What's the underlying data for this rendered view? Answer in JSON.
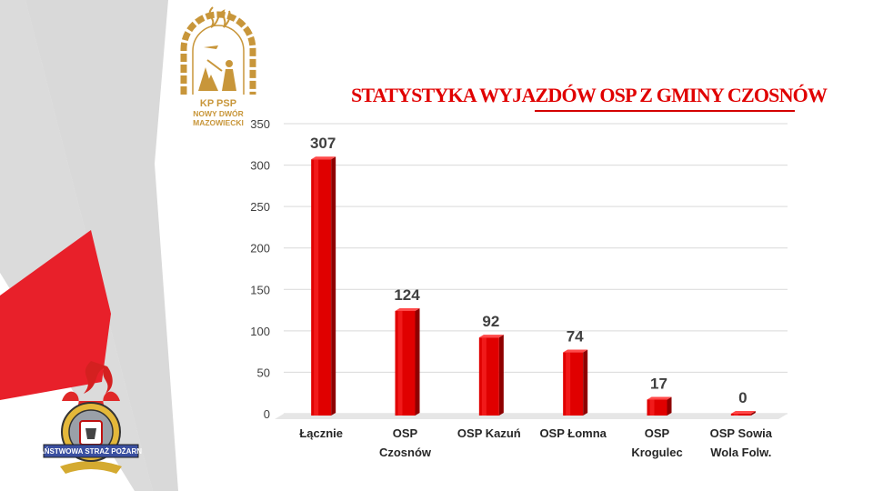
{
  "title": "STATYSTYKA WYJAZDÓW OSP Z GMINY CZOSNÓW",
  "logo_top": {
    "line1": "KP PSP",
    "line2": "NOWY DWÓR",
    "line3": "MAZOWIECKI"
  },
  "logo_bottom": {
    "text": "PAŃSTWOWA STRAŻ POŻARNA"
  },
  "colors": {
    "bar": "#e00000",
    "title": "#e00000",
    "gold": "#c8963a",
    "deco_gray": "#cccccc",
    "deco_red": "#e8202a"
  },
  "chart_data": {
    "type": "bar",
    "title": "STATYSTYKA WYJAZDÓW OSP Z GMINY CZOSNÓW",
    "categories": [
      [
        "Łącznie"
      ],
      [
        "OSP",
        "Czosnów"
      ],
      [
        "OSP Kazuń"
      ],
      [
        "OSP Łomna"
      ],
      [
        "OSP",
        "Krogulec"
      ],
      [
        "OSP Sowia",
        "Wola Folw."
      ]
    ],
    "values": [
      307,
      124,
      92,
      74,
      17,
      0
    ],
    "ylim": [
      0,
      350
    ],
    "yticks": [
      0,
      50,
      100,
      150,
      200,
      250,
      300,
      350
    ],
    "grid": true,
    "data_labels": true
  }
}
